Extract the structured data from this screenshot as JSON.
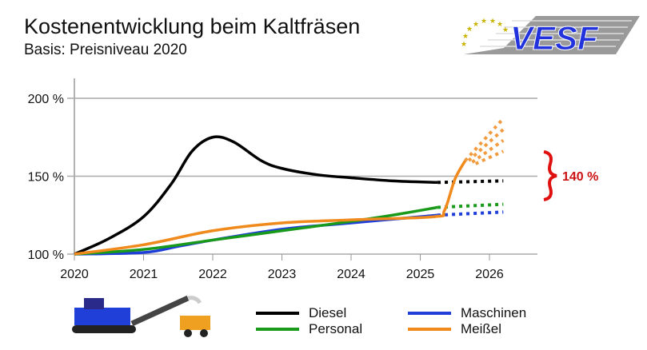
{
  "title": "Kostenentwicklung beim Kaltfräsen",
  "subtitle": "Basis: Preisniveau 2020",
  "logo_text": "VESF",
  "chart_data": {
    "type": "line",
    "title": "Kostenentwicklung beim Kaltfräsen",
    "subtitle": "Basis: Preisniveau 2020",
    "xlabel": "",
    "ylabel": "",
    "xlim": [
      2020,
      2026.7
    ],
    "ylim": [
      100,
      210
    ],
    "x_ticks": [
      "2020",
      "2021",
      "2022",
      "2023",
      "2024",
      "2025",
      "2026"
    ],
    "y_ticks": [
      {
        "v": 100,
        "label": "100 %"
      },
      {
        "v": 150,
        "label": "150 %"
      },
      {
        "v": 200,
        "label": "200 %"
      }
    ],
    "grid": "horizontal",
    "legend_position": "bottom",
    "annotation": "140 %",
    "series": [
      {
        "name": "Diesel",
        "color": "#000000",
        "solid": [
          [
            2020,
            100
          ],
          [
            2020.5,
            110
          ],
          [
            2021,
            124
          ],
          [
            2021.4,
            145
          ],
          [
            2021.7,
            166
          ],
          [
            2022,
            175
          ],
          [
            2022.3,
            172
          ],
          [
            2022.7,
            160
          ],
          [
            2023,
            155
          ],
          [
            2023.5,
            151
          ],
          [
            2024,
            149
          ],
          [
            2024.6,
            147
          ],
          [
            2025.25,
            146
          ]
        ],
        "projection": [
          [
            2025.25,
            146
          ],
          [
            2026.2,
            147
          ]
        ]
      },
      {
        "name": "Personal",
        "color": "#1a9a1a",
        "solid": [
          [
            2020,
            100
          ],
          [
            2021,
            103
          ],
          [
            2022,
            109
          ],
          [
            2023,
            115
          ],
          [
            2024,
            121
          ],
          [
            2024.6,
            125
          ],
          [
            2025.25,
            130
          ]
        ],
        "projection": [
          [
            2025.25,
            130
          ],
          [
            2026.2,
            132
          ]
        ]
      },
      {
        "name": "Maschinen",
        "color": "#1f3fd8",
        "solid": [
          [
            2020,
            100
          ],
          [
            2021,
            101
          ],
          [
            2021.5,
            105
          ],
          [
            2022,
            109
          ],
          [
            2023,
            116
          ],
          [
            2024,
            120
          ],
          [
            2025.25,
            125
          ]
        ],
        "projection": [
          [
            2025.25,
            125
          ],
          [
            2026.2,
            127
          ]
        ]
      },
      {
        "name": "Meißel",
        "color": "#f08a1c",
        "solid": [
          [
            2020,
            100
          ],
          [
            2021,
            106
          ],
          [
            2022,
            115
          ],
          [
            2023,
            120
          ],
          [
            2024,
            122
          ],
          [
            2025.2,
            124
          ],
          [
            2025.35,
            128
          ],
          [
            2025.5,
            148
          ],
          [
            2025.65,
            160
          ]
        ],
        "projection_fan": [
          [
            [
              2025.65,
              160
            ],
            [
              2026.2,
              187
            ]
          ],
          [
            [
              2025.7,
              160
            ],
            [
              2026.2,
              180
            ]
          ],
          [
            [
              2025.75,
              159
            ],
            [
              2026.2,
              173
            ]
          ],
          [
            [
              2025.8,
              158
            ],
            [
              2026.2,
              166
            ]
          ]
        ]
      }
    ]
  }
}
